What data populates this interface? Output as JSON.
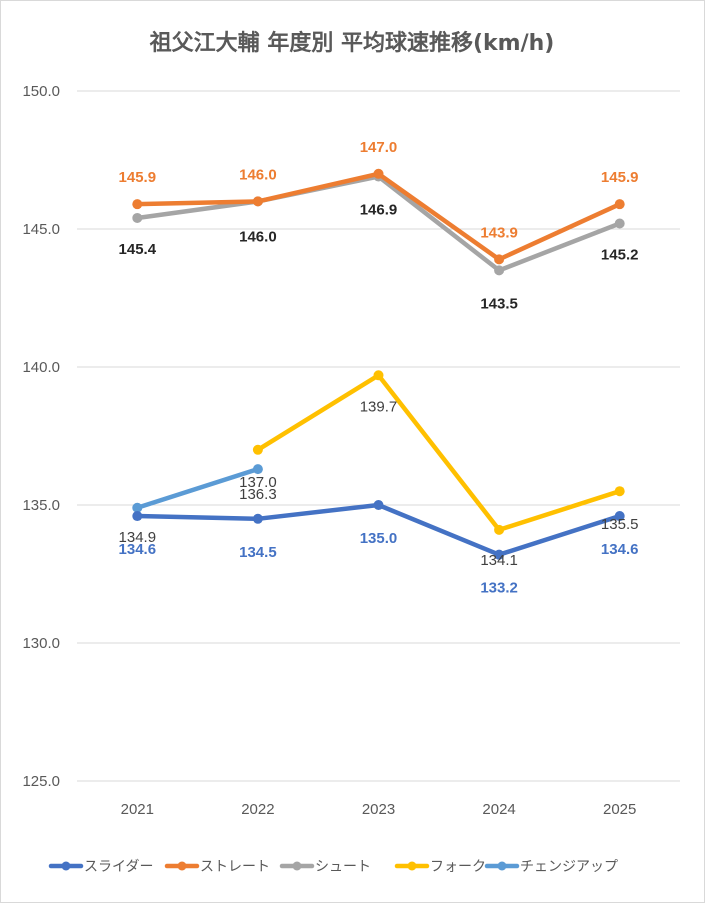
{
  "chart_data": {
    "type": "line",
    "title": "祖父江大輔 年度別 平均球速推移(km/h)",
    "categories": [
      "2021",
      "2022",
      "2023",
      "2024",
      "2025"
    ],
    "ylim": [
      125.0,
      150.0
    ],
    "yticks": [
      "125.0",
      "130.0",
      "135.0",
      "140.0",
      "145.0",
      "150.0"
    ],
    "grid": true,
    "legend_position": "bottom",
    "series": [
      {
        "name": "スライダー",
        "color": "#4472c4",
        "values": [
          134.6,
          134.5,
          135.0,
          133.2,
          134.6
        ],
        "labels": [
          "134.6",
          "134.5",
          "135.0",
          "133.2",
          "134.6"
        ],
        "label_color": "#4472c4",
        "label_bold": true
      },
      {
        "name": "ストレート",
        "color": "#ed7d31",
        "values": [
          145.9,
          146.0,
          147.0,
          143.9,
          145.9
        ],
        "labels": [
          "145.9",
          "146.0",
          "147.0",
          "143.9",
          "145.9"
        ],
        "label_color": "#ed7d31",
        "label_bold": true
      },
      {
        "name": "シュート",
        "color": "#a5a5a5",
        "values": [
          145.4,
          146.0,
          146.9,
          143.5,
          145.2
        ],
        "labels": [
          "145.4",
          "146.0",
          "146.9",
          "143.5",
          "145.2"
        ],
        "label_color": "#262626",
        "label_bold": true
      },
      {
        "name": "フォーク",
        "color": "#ffc000",
        "values": [
          null,
          137.0,
          139.7,
          134.1,
          135.5
        ],
        "labels": [
          "",
          "137.0",
          "139.7",
          "134.1",
          "135.5"
        ],
        "label_color": "#404040",
        "label_bold": false
      },
      {
        "name": "チェンジアップ",
        "color": "#5b9bd5",
        "values": [
          134.9,
          136.3,
          null,
          null,
          null
        ],
        "labels": [
          "134.9",
          "136.3",
          "",
          "",
          ""
        ],
        "label_color": "#404040",
        "label_bold": false
      }
    ]
  }
}
